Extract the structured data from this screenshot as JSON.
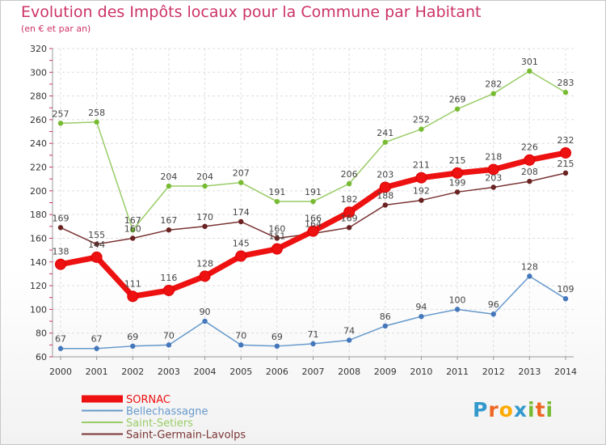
{
  "chart_data": {
    "type": "line",
    "title": "Evolution des Impôts locaux pour la Commune par Habitant",
    "subtitle": "(en € et par an)",
    "xlabel": "",
    "ylabel": "",
    "x": [
      "2000",
      "2001",
      "2002",
      "2003",
      "2004",
      "2005",
      "2006",
      "2007",
      "2008",
      "2009",
      "2010",
      "2011",
      "2012",
      "2013",
      "2014"
    ],
    "ylim": [
      60,
      320
    ],
    "yticks": [
      60,
      80,
      100,
      120,
      140,
      160,
      180,
      200,
      220,
      240,
      260,
      280,
      300,
      320
    ],
    "grid": true,
    "legend_position": "bottom-left",
    "series": [
      {
        "name": "Saint-Setiers",
        "color": "#99cc66",
        "marker": "#77bb33",
        "values": [
          257,
          258,
          167,
          204,
          204,
          207,
          191,
          191,
          206,
          241,
          252,
          269,
          282,
          301,
          283
        ]
      },
      {
        "name": "Saint-Germain-Lavolps",
        "color": "#7a3333",
        "marker": "#6b2222",
        "values": [
          169,
          155,
          160,
          167,
          170,
          174,
          160,
          164,
          169,
          188,
          192,
          199,
          203,
          208,
          215
        ]
      },
      {
        "name": "SORNAC",
        "color": "#ee1111",
        "marker": "#ee1111",
        "values": [
          138,
          144,
          111,
          116,
          128,
          145,
          151,
          166,
          182,
          203,
          211,
          215,
          218,
          226,
          232
        ]
      },
      {
        "name": "Bellechassagne",
        "color": "#6699cc",
        "marker": "#4477bb",
        "values": [
          67,
          67,
          69,
          70,
          90,
          70,
          69,
          71,
          74,
          86,
          94,
          100,
          96,
          128,
          109
        ]
      }
    ],
    "legend_order": [
      "SORNAC",
      "Bellechassagne",
      "Saint-Setiers",
      "Saint-Germain-Lavolps"
    ]
  },
  "logo": {
    "letters": [
      "P",
      "r",
      "o",
      "x",
      "i",
      "t",
      "i"
    ],
    "colors": [
      "#3399cc",
      "#ee6622",
      "#ffaa00",
      "#3399cc",
      "#77bb33",
      "#ee6622",
      "#77bb33"
    ]
  }
}
